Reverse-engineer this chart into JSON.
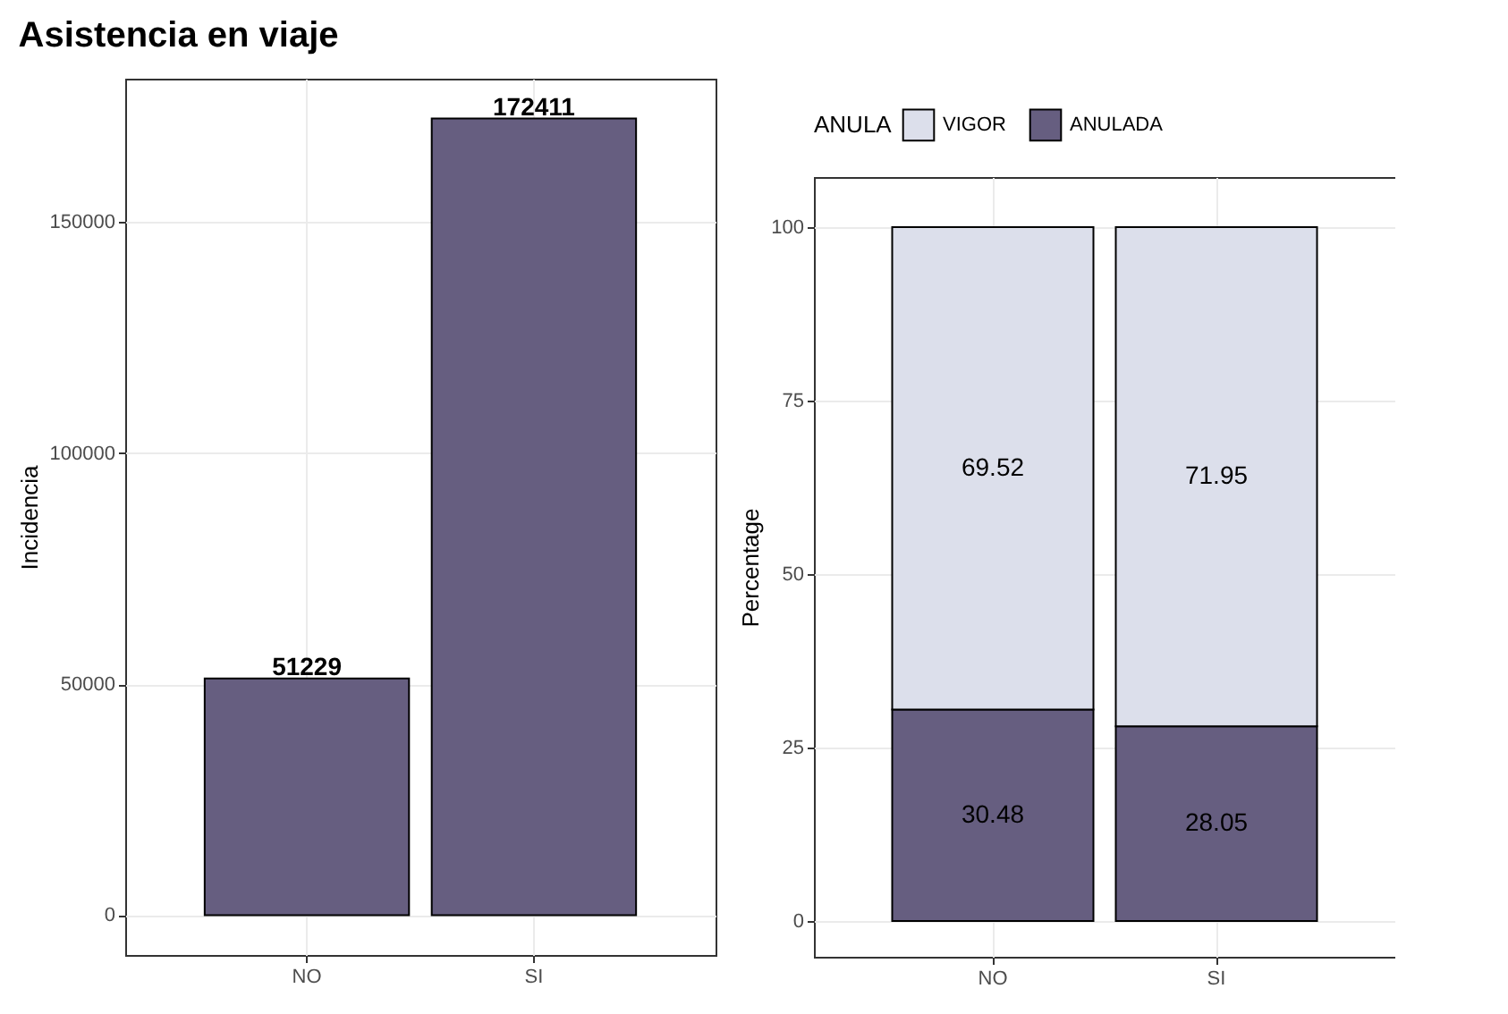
{
  "chart_data": [
    {
      "type": "bar",
      "title": "Asistencia en viaje",
      "ylabel": "Incidencia",
      "categories": [
        "NO",
        "SI"
      ],
      "series": [
        {
          "color": "#665e80",
          "values": [
            51229,
            172411
          ]
        }
      ],
      "ylim": [
        -8620,
        181030
      ],
      "yticks": [
        0,
        50000,
        100000,
        150000
      ],
      "grid": true,
      "data_labels": true
    },
    {
      "type": "bar",
      "stacked": true,
      "ylabel": "Percentage",
      "legend_title": "ANULA",
      "legend": "top",
      "categories": [
        "NO",
        "SI"
      ],
      "series": [
        {
          "name": "ANULADA",
          "color": "#665e80",
          "values": [
            30.48,
            28.05
          ]
        },
        {
          "name": "VIGOR",
          "color": "#dcdfeb",
          "values": [
            69.52,
            71.95
          ]
        }
      ],
      "ylim": [
        -5.15,
        107.2
      ],
      "yticks": [
        0,
        25,
        50,
        75,
        100
      ],
      "grid": true,
      "data_labels": true
    }
  ]
}
